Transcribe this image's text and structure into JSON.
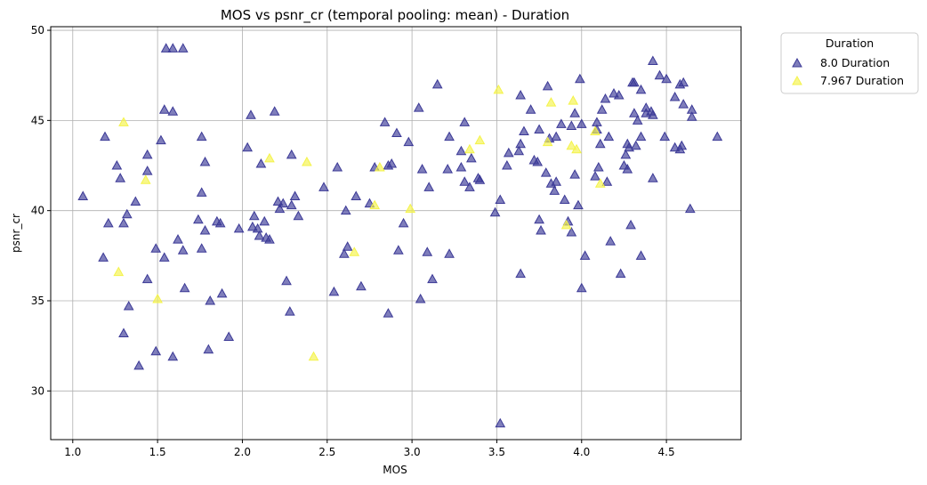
{
  "chart_data": {
    "type": "scatter",
    "title": "MOS vs psnr_cr (temporal pooling: mean) - Duration",
    "xlabel": "MOS",
    "ylabel": "psnr_cr",
    "xlim": [
      0.87,
      4.94
    ],
    "ylim": [
      27.3,
      50.2
    ],
    "x_ticks": [
      1.0,
      1.5,
      2.0,
      2.5,
      3.0,
      3.5,
      4.0,
      4.5
    ],
    "x_tick_labels": [
      "1.0",
      "1.5",
      "2.0",
      "2.5",
      "3.0",
      "3.5",
      "4.0",
      "4.5"
    ],
    "y_ticks": [
      30,
      35,
      40,
      45,
      50
    ],
    "y_tick_labels": [
      "30",
      "35",
      "40",
      "45",
      "50"
    ],
    "grid": true,
    "marker": "triangle",
    "legend": {
      "title": "Duration",
      "placement": "outside-top-right"
    },
    "series": [
      {
        "name": "8.0 Duration",
        "color": "#3b3996",
        "points": [
          [
            1.06,
            40.8
          ],
          [
            1.18,
            37.4
          ],
          [
            1.19,
            44.1
          ],
          [
            1.21,
            39.3
          ],
          [
            1.26,
            42.5
          ],
          [
            1.28,
            41.8
          ],
          [
            1.3,
            39.3
          ],
          [
            1.3,
            33.2
          ],
          [
            1.32,
            39.8
          ],
          [
            1.33,
            34.7
          ],
          [
            1.37,
            40.5
          ],
          [
            1.39,
            31.4
          ],
          [
            1.44,
            43.1
          ],
          [
            1.44,
            42.2
          ],
          [
            1.44,
            36.2
          ],
          [
            1.49,
            37.9
          ],
          [
            1.49,
            32.2
          ],
          [
            1.52,
            43.9
          ],
          [
            1.54,
            37.4
          ],
          [
            1.54,
            45.6
          ],
          [
            1.55,
            49.0
          ],
          [
            1.59,
            49.0
          ],
          [
            1.59,
            45.5
          ],
          [
            1.59,
            31.9
          ],
          [
            1.62,
            38.4
          ],
          [
            1.65,
            49.0
          ],
          [
            1.65,
            37.8
          ],
          [
            1.66,
            35.7
          ],
          [
            1.74,
            39.5
          ],
          [
            1.76,
            44.1
          ],
          [
            1.76,
            41.0
          ],
          [
            1.76,
            37.9
          ],
          [
            1.78,
            42.7
          ],
          [
            1.78,
            38.9
          ],
          [
            1.8,
            32.3
          ],
          [
            1.81,
            35.0
          ],
          [
            1.85,
            39.4
          ],
          [
            1.87,
            39.3
          ],
          [
            1.88,
            35.4
          ],
          [
            1.92,
            33.0
          ],
          [
            1.98,
            39.0
          ],
          [
            2.03,
            43.5
          ],
          [
            2.05,
            45.3
          ],
          [
            2.06,
            39.1
          ],
          [
            2.07,
            39.7
          ],
          [
            2.09,
            39.0
          ],
          [
            2.1,
            38.6
          ],
          [
            2.11,
            42.6
          ],
          [
            2.13,
            39.4
          ],
          [
            2.14,
            38.5
          ],
          [
            2.16,
            38.4
          ],
          [
            2.19,
            45.5
          ],
          [
            2.21,
            40.5
          ],
          [
            2.22,
            40.1
          ],
          [
            2.24,
            40.4
          ],
          [
            2.26,
            36.1
          ],
          [
            2.28,
            34.4
          ],
          [
            2.29,
            43.1
          ],
          [
            2.29,
            40.3
          ],
          [
            2.31,
            40.8
          ],
          [
            2.33,
            39.7
          ],
          [
            2.48,
            41.3
          ],
          [
            2.54,
            35.5
          ],
          [
            2.56,
            42.4
          ],
          [
            2.6,
            37.6
          ],
          [
            2.61,
            40.0
          ],
          [
            2.62,
            38.0
          ],
          [
            2.67,
            40.8
          ],
          [
            2.7,
            35.8
          ],
          [
            2.75,
            40.4
          ],
          [
            2.78,
            42.4
          ],
          [
            2.84,
            44.9
          ],
          [
            2.86,
            34.3
          ],
          [
            2.86,
            42.5
          ],
          [
            2.88,
            42.6
          ],
          [
            2.91,
            44.3
          ],
          [
            2.92,
            37.8
          ],
          [
            2.95,
            39.3
          ],
          [
            2.98,
            43.8
          ],
          [
            3.04,
            45.7
          ],
          [
            3.05,
            35.1
          ],
          [
            3.06,
            42.3
          ],
          [
            3.09,
            37.7
          ],
          [
            3.1,
            41.3
          ],
          [
            3.12,
            36.2
          ],
          [
            3.15,
            47.0
          ],
          [
            3.21,
            42.3
          ],
          [
            3.22,
            37.6
          ],
          [
            3.22,
            44.1
          ],
          [
            3.29,
            42.4
          ],
          [
            3.29,
            43.3
          ],
          [
            3.31,
            44.9
          ],
          [
            3.31,
            41.6
          ],
          [
            3.34,
            41.3
          ],
          [
            3.35,
            42.9
          ],
          [
            3.39,
            41.8
          ],
          [
            3.4,
            41.7
          ],
          [
            3.49,
            39.9
          ],
          [
            3.52,
            40.6
          ],
          [
            3.52,
            28.2
          ],
          [
            3.56,
            42.5
          ],
          [
            3.57,
            43.2
          ],
          [
            3.63,
            43.3
          ],
          [
            3.64,
            43.7
          ],
          [
            3.64,
            36.5
          ],
          [
            3.64,
            46.4
          ],
          [
            3.66,
            44.4
          ],
          [
            3.7,
            45.6
          ],
          [
            3.72,
            42.8
          ],
          [
            3.74,
            42.7
          ],
          [
            3.75,
            44.5
          ],
          [
            3.75,
            39.5
          ],
          [
            3.76,
            38.9
          ],
          [
            3.79,
            42.1
          ],
          [
            3.8,
            46.9
          ],
          [
            3.81,
            44.0
          ],
          [
            3.82,
            41.5
          ],
          [
            3.84,
            41.1
          ],
          [
            3.85,
            44.1
          ],
          [
            3.85,
            41.6
          ],
          [
            3.88,
            44.8
          ],
          [
            3.9,
            40.6
          ],
          [
            3.92,
            39.4
          ],
          [
            3.94,
            38.8
          ],
          [
            3.94,
            44.7
          ],
          [
            3.96,
            42.0
          ],
          [
            3.96,
            45.4
          ],
          [
            3.98,
            40.3
          ],
          [
            3.99,
            47.3
          ],
          [
            4.0,
            35.7
          ],
          [
            4.0,
            44.8
          ],
          [
            4.02,
            37.5
          ],
          [
            4.08,
            41.9
          ],
          [
            4.09,
            44.5
          ],
          [
            4.09,
            44.9
          ],
          [
            4.1,
            42.4
          ],
          [
            4.11,
            43.7
          ],
          [
            4.12,
            45.6
          ],
          [
            4.14,
            46.2
          ],
          [
            4.15,
            41.6
          ],
          [
            4.16,
            44.1
          ],
          [
            4.17,
            38.3
          ],
          [
            4.19,
            46.5
          ],
          [
            4.22,
            46.4
          ],
          [
            4.23,
            36.5
          ],
          [
            4.25,
            42.5
          ],
          [
            4.26,
            43.1
          ],
          [
            4.27,
            42.3
          ],
          [
            4.27,
            43.7
          ],
          [
            4.28,
            43.5
          ],
          [
            4.29,
            39.2
          ],
          [
            4.3,
            47.1
          ],
          [
            4.31,
            45.4
          ],
          [
            4.31,
            47.1
          ],
          [
            4.32,
            43.6
          ],
          [
            4.33,
            45.0
          ],
          [
            4.35,
            37.5
          ],
          [
            4.35,
            46.7
          ],
          [
            4.35,
            44.1
          ],
          [
            4.38,
            45.4
          ],
          [
            4.38,
            45.7
          ],
          [
            4.41,
            45.5
          ],
          [
            4.42,
            48.3
          ],
          [
            4.42,
            45.3
          ],
          [
            4.42,
            41.8
          ],
          [
            4.46,
            47.5
          ],
          [
            4.49,
            44.1
          ],
          [
            4.5,
            47.3
          ],
          [
            4.55,
            43.5
          ],
          [
            4.55,
            46.3
          ],
          [
            4.58,
            43.4
          ],
          [
            4.58,
            47.0
          ],
          [
            4.59,
            43.6
          ],
          [
            4.6,
            47.1
          ],
          [
            4.6,
            45.9
          ],
          [
            4.64,
            40.1
          ],
          [
            4.65,
            45.2
          ],
          [
            4.65,
            45.6
          ],
          [
            4.8,
            44.1
          ]
        ]
      },
      {
        "name": "7.967 Duration",
        "color": "#f4f34a",
        "points": [
          [
            1.27,
            36.6
          ],
          [
            1.3,
            44.9
          ],
          [
            1.43,
            41.7
          ],
          [
            1.5,
            35.1
          ],
          [
            2.16,
            42.9
          ],
          [
            2.38,
            42.7
          ],
          [
            2.42,
            31.9
          ],
          [
            2.66,
            37.7
          ],
          [
            2.78,
            40.3
          ],
          [
            2.81,
            42.4
          ],
          [
            2.99,
            40.1
          ],
          [
            3.34,
            43.4
          ],
          [
            3.4,
            43.9
          ],
          [
            3.51,
            46.7
          ],
          [
            3.8,
            43.8
          ],
          [
            3.82,
            46.0
          ],
          [
            3.91,
            39.2
          ],
          [
            3.94,
            43.6
          ],
          [
            3.95,
            46.1
          ],
          [
            3.97,
            43.4
          ],
          [
            4.08,
            44.4
          ],
          [
            4.11,
            41.5
          ]
        ]
      }
    ]
  }
}
